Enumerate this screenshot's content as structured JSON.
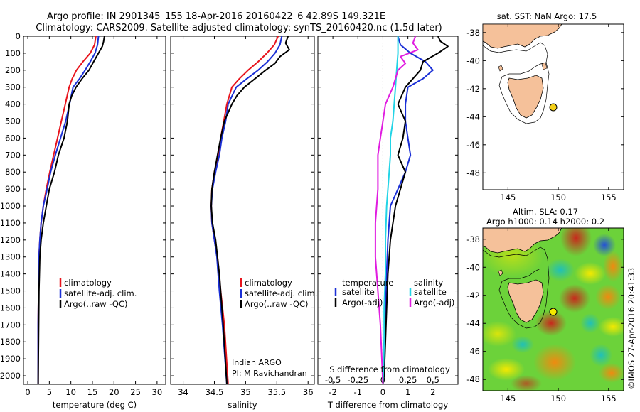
{
  "header": {
    "line1": "Argo profile: IN 2901345_155 18-Apr-2016 20160422_6 42.89S 149.321E",
    "line2": "Climatology: CARS2009. Satellite-adjusted climatology: synTS_20160420.nc (1.5d later)"
  },
  "watermark": "©IMOS 27-Apr-2016 20:41:33",
  "colors": {
    "climatology": "#e8141c",
    "satellite": "#1a2fd6",
    "argo": "#000000",
    "sal_satellite": "#22d4e6",
    "sal_argo": "#e01ce0",
    "land": "#f5c19a"
  },
  "chart_data": [
    {
      "id": "temperature",
      "type": "line",
      "xlabel": "temperature (deg C)",
      "xlim": [
        -1,
        32
      ],
      "xticks": [
        0,
        5,
        10,
        15,
        20,
        25,
        30
      ],
      "xticklabels": [
        "0",
        "5",
        "10",
        "15",
        "20",
        "25",
        "30"
      ],
      "ylim": [
        2050,
        0
      ],
      "yticks": [
        0,
        100,
        200,
        300,
        400,
        500,
        600,
        700,
        800,
        900,
        1000,
        1100,
        1200,
        1300,
        1400,
        1500,
        1600,
        1700,
        1800,
        1900,
        2000
      ],
      "legend": [
        "climatology",
        "satellite-adj. clim.",
        "Argo(..raw -QC)"
      ],
      "series": [
        {
          "name": "climatology",
          "color": "climatology",
          "x": [
            15.8,
            15.5,
            14.5,
            12.8,
            11.3,
            10.3,
            9.6,
            8.7,
            7.8,
            6.9,
            6.0,
            5.1,
            4.3,
            3.6,
            3.1,
            2.8,
            2.6,
            2.5,
            2.4,
            2.4
          ],
          "y": [
            0,
            50,
            100,
            150,
            200,
            250,
            300,
            400,
            500,
            600,
            700,
            800,
            900,
            1000,
            1100,
            1200,
            1300,
            1500,
            1700,
            2050
          ]
        },
        {
          "name": "satellite-adj. clim.",
          "color": "satellite",
          "x": [
            16.4,
            16.2,
            15.6,
            14.5,
            13.3,
            12.0,
            10.5,
            9.7,
            8.8,
            7.6,
            6.4,
            5.3,
            4.5,
            3.6,
            3.1,
            2.8,
            2.6,
            2.5,
            2.4,
            2.4
          ],
          "y": [
            0,
            50,
            100,
            150,
            200,
            250,
            300,
            400,
            500,
            600,
            700,
            800,
            900,
            1000,
            1100,
            1200,
            1300,
            1500,
            1700,
            2050
          ]
        },
        {
          "name": "Argo(..raw -QC)",
          "color": "argo",
          "x": [
            17.8,
            17.6,
            17.3,
            16.4,
            15.5,
            14.2,
            12.6,
            11.2,
            10.2,
            9.6,
            9.2,
            8.4,
            7.1,
            6.2,
            5.0,
            4.3,
            3.6,
            3.1,
            2.8,
            2.6,
            2.4
          ],
          "y": [
            0,
            30,
            60,
            100,
            140,
            200,
            250,
            300,
            350,
            400,
            500,
            600,
            700,
            800,
            900,
            1000,
            1100,
            1200,
            1300,
            1500,
            2050
          ]
        }
      ]
    },
    {
      "id": "salinity",
      "type": "line",
      "xlabel": "salinity",
      "xlim": [
        33.8,
        36.1
      ],
      "xticks": [
        34,
        34.5,
        35,
        35.5,
        36
      ],
      "xticklabels": [
        "34",
        "34.5",
        "35",
        "35.5",
        "36"
      ],
      "ylim": [
        2050,
        0
      ],
      "legend": [
        "climatology",
        "satellite-adj. clim.",
        "Argo(..raw -QC)"
      ],
      "annotation": [
        "Indian ARGO",
        "PI: M Ravichandran"
      ],
      "series": [
        {
          "name": "climatology",
          "color": "climatology",
          "x": [
            35.52,
            35.46,
            35.34,
            35.2,
            35.04,
            34.9,
            34.78,
            34.7,
            34.65,
            34.6,
            34.57,
            34.5,
            34.46,
            34.45,
            34.46,
            34.5,
            34.55,
            34.6,
            34.66,
            34.72
          ],
          "y": [
            0,
            50,
            100,
            150,
            200,
            250,
            300,
            400,
            500,
            600,
            700,
            800,
            900,
            1000,
            1100,
            1200,
            1300,
            1500,
            1700,
            2050
          ]
        },
        {
          "name": "satellite-adj. clim.",
          "color": "satellite",
          "x": [
            35.58,
            35.55,
            35.47,
            35.35,
            35.2,
            35.02,
            34.85,
            34.72,
            34.68,
            34.62,
            34.58,
            34.52,
            34.47,
            34.45,
            34.46,
            34.5,
            34.54,
            34.58,
            34.63,
            34.7
          ],
          "y": [
            0,
            50,
            100,
            150,
            200,
            250,
            300,
            400,
            500,
            600,
            700,
            800,
            900,
            1000,
            1100,
            1200,
            1300,
            1500,
            1700,
            2050
          ]
        },
        {
          "name": "Argo(..raw -QC)",
          "color": "argo",
          "x": [
            35.68,
            35.64,
            35.7,
            35.55,
            35.47,
            35.32,
            35.15,
            34.98,
            34.86,
            34.78,
            34.72,
            34.66,
            34.6,
            34.55,
            34.5,
            34.46,
            34.45,
            34.47,
            34.52,
            34.58,
            34.64,
            34.7
          ],
          "y": [
            0,
            40,
            80,
            120,
            160,
            200,
            250,
            300,
            350,
            400,
            450,
            500,
            600,
            700,
            800,
            900,
            1000,
            1100,
            1200,
            1400,
            1700,
            2050
          ]
        }
      ]
    },
    {
      "id": "difference",
      "type": "line",
      "xlabel": "T difference from climatology",
      "xlabel_top": "S difference from climatology",
      "xlim": [
        -2.6,
        3.0
      ],
      "xticks": [
        -2,
        -1,
        0,
        1,
        2
      ],
      "xticklabels": [
        "-2",
        "-1",
        "0",
        "1",
        "2"
      ],
      "sticks": [
        -0.5,
        -0.25,
        0,
        0.25,
        0.5
      ],
      "sticklabels": [
        "-0.5",
        "-0.25",
        "0",
        "0.25",
        "0.5"
      ],
      "ylim": [
        2050,
        0
      ],
      "legend_temperature_title": "temperature",
      "legend_salinity_title": "salinity",
      "legend_items_temperature": [
        "satellite",
        "Argo(-adj)"
      ],
      "legend_items_salinity": [
        "satellite",
        "Argo(-adj)"
      ],
      "series": [
        {
          "name": "T satellite",
          "color": "satellite",
          "x": [
            0.6,
            0.7,
            1.1,
            1.7,
            2.0,
            1.6,
            1.0,
            0.9,
            0.9,
            1.0,
            1.1,
            0.9,
            0.6,
            0.3,
            0.2,
            0.15,
            0.1,
            0.05,
            0.0,
            0.0
          ],
          "y": [
            0,
            50,
            100,
            150,
            200,
            250,
            300,
            400,
            500,
            600,
            700,
            800,
            900,
            1000,
            1200,
            1400,
            1600,
            1800,
            2000,
            2050
          ]
        },
        {
          "name": "T Argo(-adj)",
          "color": "argo",
          "x": [
            2.2,
            2.3,
            2.6,
            2.2,
            1.6,
            1.5,
            0.9,
            0.6,
            0.9,
            0.8,
            0.6,
            0.9,
            0.7,
            0.5,
            0.3,
            0.2,
            0.15,
            0.1,
            0.05,
            0.0
          ],
          "y": [
            0,
            30,
            60,
            100,
            150,
            200,
            300,
            400,
            500,
            600,
            700,
            800,
            900,
            1000,
            1200,
            1400,
            1600,
            1800,
            2000,
            2050
          ]
        },
        {
          "name": "S satellite",
          "color": "sal_satellite",
          "x": [
            0.6,
            0.6,
            0.55,
            0.5,
            0.45,
            0.4,
            0.3,
            0.3,
            0.25,
            0.2,
            0.15,
            0.1,
            0.1,
            0.05,
            0.05,
            0.0
          ],
          "y": [
            0,
            100,
            200,
            300,
            400,
            500,
            600,
            700,
            800,
            900,
            1000,
            1200,
            1400,
            1600,
            1800,
            2050
          ]
        },
        {
          "name": "S Argo(-adj)",
          "color": "sal_argo",
          "x": [
            1.3,
            1.2,
            1.4,
            0.7,
            0.9,
            0.6,
            0.4,
            0.1,
            0.0,
            -0.1,
            -0.2,
            -0.2,
            -0.3,
            -0.3,
            -0.2,
            -0.1,
            0.0
          ],
          "y": [
            0,
            40,
            80,
            120,
            160,
            200,
            300,
            400,
            500,
            600,
            700,
            900,
            1100,
            1300,
            1500,
            1700,
            2050
          ]
        }
      ]
    },
    {
      "id": "sst_map",
      "type": "map",
      "title": "sat. SST: NaN Argo: 17.5",
      "xlim": [
        142.5,
        156.5
      ],
      "ylim": [
        -49.2,
        -37.4
      ],
      "xticks": [
        145,
        150,
        155
      ],
      "yticks": [
        -38,
        -40,
        -42,
        -44,
        -46,
        -48
      ],
      "float_position": {
        "lon": 149.321,
        "lat": -42.89
      }
    },
    {
      "id": "sla_map",
      "type": "map",
      "title_line1": "Altim. SLA: 0.17",
      "title_line2": "Argo h1000: 0.14 h2000: 0.2",
      "xlim": [
        142.5,
        156.5
      ],
      "ylim": [
        -48.8,
        -37.2
      ],
      "xticks": [
        145,
        150,
        155
      ],
      "yticks": [
        -38,
        -40,
        -42,
        -44,
        -46,
        -48
      ],
      "float_position": {
        "lon": 149.321,
        "lat": -42.89
      }
    }
  ]
}
